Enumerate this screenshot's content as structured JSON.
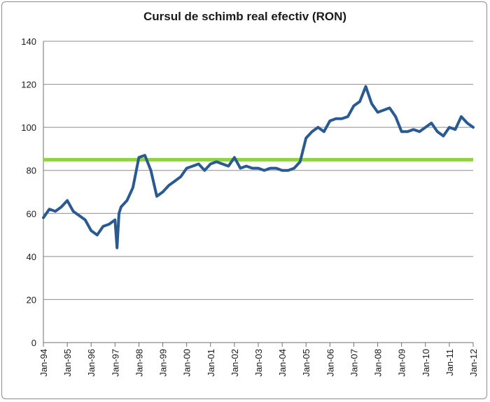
{
  "chart_data": {
    "type": "line",
    "title": "Cursul de schimb real efectiv (RON)",
    "xlabel": "",
    "ylabel": "",
    "ylim": [
      0,
      140
    ],
    "yticks": [
      0,
      20,
      40,
      60,
      80,
      100,
      120,
      140
    ],
    "xlim": [
      "1994-01",
      "2012-01"
    ],
    "xtick_labels": [
      "Jan-94",
      "Jan-95",
      "Jan-96",
      "Jan-97",
      "Jan-98",
      "Jan-99",
      "Jan-00",
      "Jan-01",
      "Jan-02",
      "Jan-03",
      "Jan-04",
      "Jan-05",
      "Jan-06",
      "Jan-07",
      "Jan-08",
      "Jan-09",
      "Jan-10",
      "Jan-11",
      "Jan-12"
    ],
    "grid": true,
    "legend": "none",
    "series": [
      {
        "color": "#2b5a93",
        "x": [
          "1994-01",
          "1994-04",
          "1994-07",
          "1994-10",
          "1995-01",
          "1995-04",
          "1995-07",
          "1995-10",
          "1996-01",
          "1996-04",
          "1996-07",
          "1996-10",
          "1997-01",
          "1997-02",
          "1997-03",
          "1997-04",
          "1997-07",
          "1997-10",
          "1998-01",
          "1998-04",
          "1998-07",
          "1998-10",
          "1999-01",
          "1999-04",
          "1999-07",
          "1999-10",
          "2000-01",
          "2000-04",
          "2000-07",
          "2000-10",
          "2001-01",
          "2001-04",
          "2001-07",
          "2001-10",
          "2002-01",
          "2002-04",
          "2002-07",
          "2002-10",
          "2003-01",
          "2003-04",
          "2003-07",
          "2003-10",
          "2004-01",
          "2004-04",
          "2004-07",
          "2004-10",
          "2005-01",
          "2005-04",
          "2005-07",
          "2005-10",
          "2006-01",
          "2006-04",
          "2006-07",
          "2006-10",
          "2007-01",
          "2007-04",
          "2007-07",
          "2007-10",
          "2008-01",
          "2008-04",
          "2008-07",
          "2008-10",
          "2009-01",
          "2009-04",
          "2009-07",
          "2009-10",
          "2010-01",
          "2010-04",
          "2010-07",
          "2010-10",
          "2011-01",
          "2011-04",
          "2011-07",
          "2011-10",
          "2012-01"
        ],
        "y": [
          58,
          62,
          61,
          63,
          66,
          61,
          59,
          57,
          52,
          50,
          54,
          55,
          57,
          44,
          60,
          63,
          66,
          72,
          86,
          87,
          80,
          68,
          70,
          73,
          75,
          77,
          81,
          82,
          83,
          80,
          83,
          84,
          83,
          82,
          86,
          81,
          82,
          81,
          81,
          80,
          81,
          81,
          80,
          80,
          81,
          84,
          95,
          98,
          100,
          98,
          103,
          104,
          104,
          105,
          110,
          112,
          119,
          111,
          107,
          108,
          109,
          105,
          98,
          98,
          99,
          98,
          100,
          102,
          98,
          96,
          100,
          99,
          105,
          102,
          100
        ]
      }
    ],
    "reference_line": {
      "y": 85,
      "color": "#8ed445"
    }
  }
}
